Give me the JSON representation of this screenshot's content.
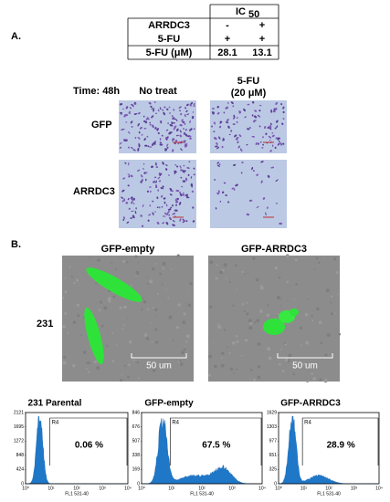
{
  "panel_a": {
    "label": "A.",
    "table": {
      "header": "IC",
      "header_sub": "50",
      "rows": [
        [
          "ARRDC3",
          "-",
          "+"
        ],
        [
          "5-FU",
          "+",
          "+"
        ],
        [
          "5-FU (μM)",
          "28.1",
          "13.1"
        ]
      ]
    },
    "time": "Time: 48h",
    "columns": [
      [
        "No treat"
      ],
      [
        "5-FU",
        "(20 μM)"
      ]
    ],
    "rows": [
      "GFP",
      "ARRDC3"
    ]
  },
  "panel_b": {
    "label": "B.",
    "columns": [
      "GFP-empty",
      "GFP-ARRDC3"
    ],
    "row": "231",
    "scale_bar": "50 um",
    "histograms": [
      {
        "title": "231 Parental",
        "percent": "0.06 %",
        "gate": "R4",
        "xlabel": "FL1 531-40",
        "yticks": [
          "2121",
          "1695",
          "1272",
          "848",
          "424",
          "0"
        ]
      },
      {
        "title": "GFP-empty",
        "percent": "67.5 %",
        "gate": "R4",
        "xlabel": "FL1 531-40",
        "yticks": [
          "846",
          "676",
          "507",
          "338",
          "169",
          "0"
        ]
      },
      {
        "title": "GFP-ARRDC3",
        "percent": "28.9 %",
        "gate": "R4",
        "xlabel": "FL1 531-40",
        "yticks": [
          "1629",
          "1303",
          "977",
          "651",
          "325",
          "0"
        ]
      }
    ],
    "xticks": [
      "10⁰",
      "10¹",
      "10²",
      "10³",
      "10⁴"
    ]
  }
}
